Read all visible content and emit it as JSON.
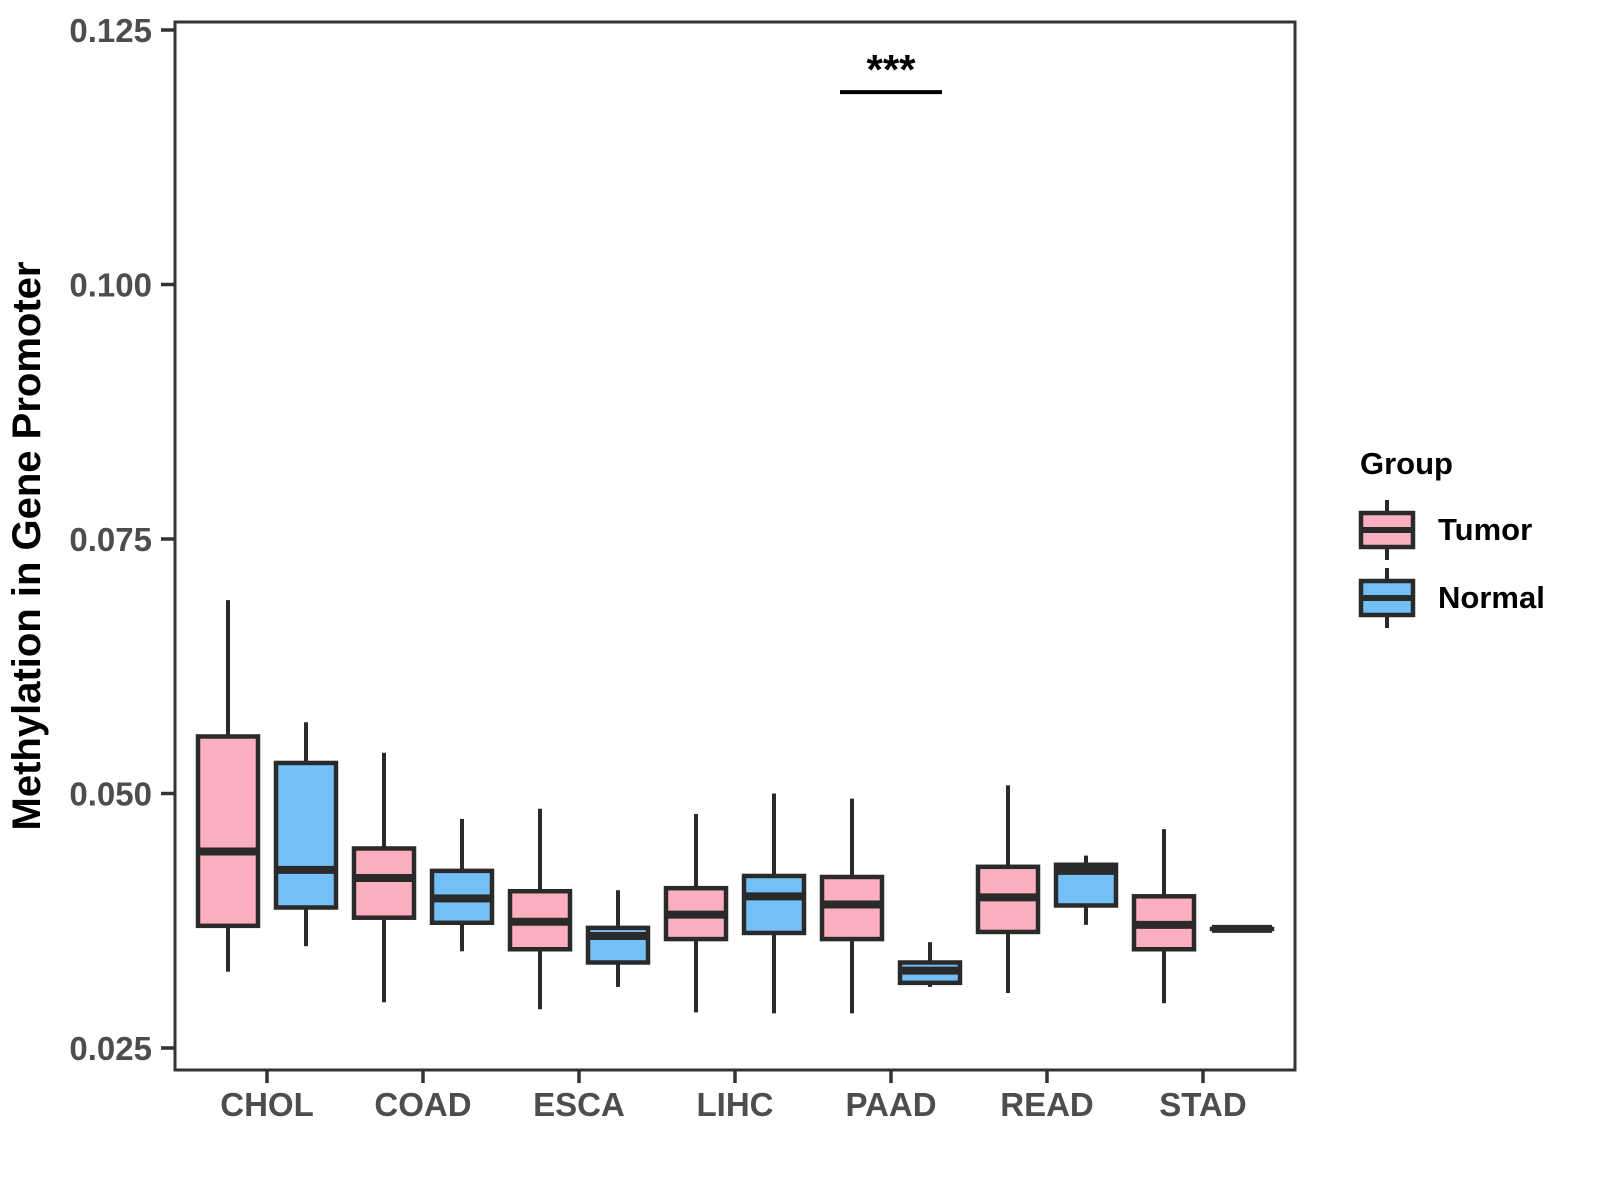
{
  "figure": {
    "colors": {
      "tumor_fill": "#FBAEBE",
      "normal_fill": "#73BFF8",
      "box_stroke": "#2A2A2A",
      "panel_border": "#333333",
      "axis_text": "#4D4D4D",
      "axis_title": "#000000"
    },
    "legend": {
      "title": "Group",
      "items": [
        {
          "label": "Tumor",
          "color": "#FBAEBE"
        },
        {
          "label": "Normal",
          "color": "#73BFF8"
        }
      ]
    }
  },
  "chart_data": {
    "type": "boxplot",
    "title": "",
    "xlabel": "",
    "ylabel": "Methylation in Gene Promoter",
    "categories": [
      "CHOL",
      "COAD",
      "ESCA",
      "LIHC",
      "PAAD",
      "READ",
      "STAD"
    ],
    "y_ticks": [
      {
        "value": 0.025,
        "label": "0.025"
      },
      {
        "value": 0.05,
        "label": "0.050"
      },
      {
        "value": 0.075,
        "label": "0.075"
      },
      {
        "value": 0.1,
        "label": "0.100"
      },
      {
        "value": 0.125,
        "label": "0.125"
      }
    ],
    "ylim": [
      0.0228,
      0.1258
    ],
    "grid": false,
    "legend_position": "right",
    "series": [
      {
        "name": "Tumor",
        "color": "#FBAEBE",
        "boxes": [
          {
            "category": "CHOL",
            "min": 0.0325,
            "q1": 0.037,
            "median": 0.0443,
            "q3": 0.0556,
            "max": 0.069
          },
          {
            "category": "COAD",
            "min": 0.0295,
            "q1": 0.0378,
            "median": 0.0417,
            "q3": 0.0446,
            "max": 0.054
          },
          {
            "category": "ESCA",
            "min": 0.0288,
            "q1": 0.0347,
            "median": 0.0374,
            "q3": 0.0404,
            "max": 0.0485
          },
          {
            "category": "LIHC",
            "min": 0.0285,
            "q1": 0.0357,
            "median": 0.0381,
            "q3": 0.0407,
            "max": 0.048
          },
          {
            "category": "PAAD",
            "min": 0.0284,
            "q1": 0.0357,
            "median": 0.0391,
            "q3": 0.0418,
            "max": 0.0495
          },
          {
            "category": "READ",
            "min": 0.0304,
            "q1": 0.0364,
            "median": 0.0398,
            "q3": 0.0428,
            "max": 0.0508
          },
          {
            "category": "STAD",
            "min": 0.0294,
            "q1": 0.0347,
            "median": 0.0371,
            "q3": 0.0399,
            "max": 0.0465
          }
        ]
      },
      {
        "name": "Normal",
        "color": "#73BFF8",
        "boxes": [
          {
            "category": "CHOL",
            "min": 0.035,
            "q1": 0.0388,
            "median": 0.0425,
            "q3": 0.053,
            "max": 0.057
          },
          {
            "category": "COAD",
            "min": 0.0345,
            "q1": 0.0373,
            "median": 0.0397,
            "q3": 0.0424,
            "max": 0.0475
          },
          {
            "category": "ESCA",
            "min": 0.031,
            "q1": 0.0334,
            "median": 0.036,
            "q3": 0.0368,
            "max": 0.0405
          },
          {
            "category": "LIHC",
            "min": 0.0284,
            "q1": 0.0363,
            "median": 0.0399,
            "q3": 0.0419,
            "max": 0.05
          },
          {
            "category": "PAAD",
            "min": 0.031,
            "q1": 0.0314,
            "median": 0.0326,
            "q3": 0.0334,
            "max": 0.0354
          },
          {
            "category": "READ",
            "min": 0.0371,
            "q1": 0.039,
            "median": 0.0424,
            "q3": 0.043,
            "max": 0.0439
          },
          {
            "category": "STAD",
            "min": 0.0367,
            "q1": 0.0367,
            "median": 0.0367,
            "q3": 0.0367,
            "max": 0.0367
          }
        ]
      }
    ],
    "annotations": [
      {
        "type": "significance",
        "label": "***",
        "category": "PAAD",
        "bar_y_value": 0.1189
      }
    ]
  }
}
